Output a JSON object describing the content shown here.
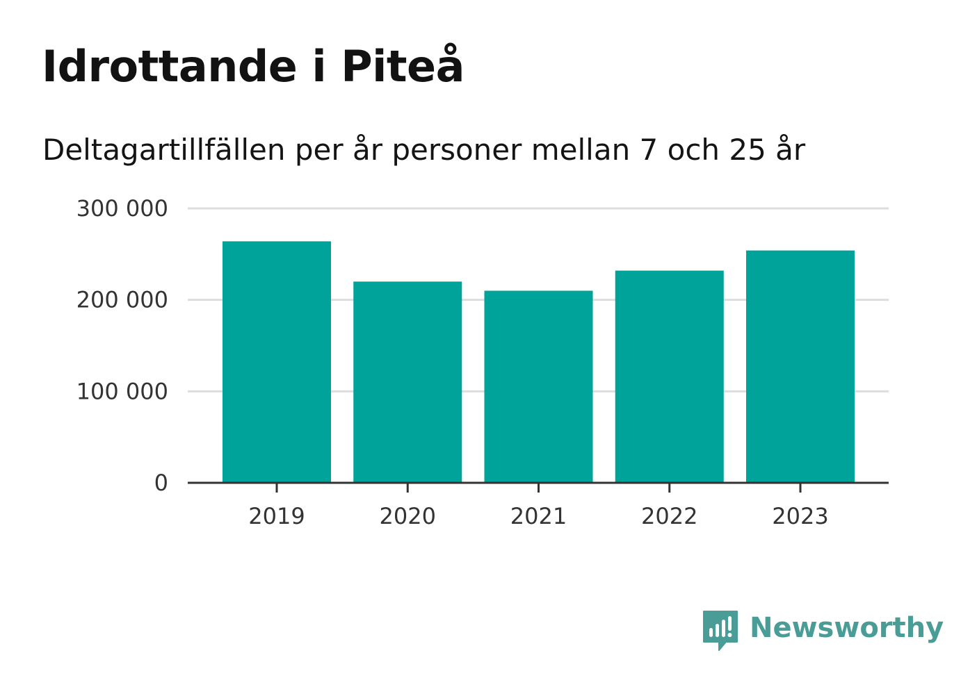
{
  "header": {
    "title": "Idrottande i Piteå",
    "subtitle": "Deltagartillfällen per år personer mellan 7 och 25 år"
  },
  "chart_data": {
    "type": "bar",
    "categories": [
      "2019",
      "2020",
      "2021",
      "2022",
      "2023"
    ],
    "values": [
      264000,
      220000,
      210000,
      232000,
      254000
    ],
    "ylim": [
      0,
      300000
    ],
    "yticks": [
      0,
      100000,
      200000,
      300000
    ],
    "ytick_labels": [
      "0",
      "100 000",
      "200 000",
      "300 000"
    ],
    "grid": true,
    "bar_color": "#00a39a",
    "gridline_color": "#dddddd",
    "axis_color": "#333333"
  },
  "brand": {
    "name": "Newsworthy",
    "icon": "newsworthy-logo-icon",
    "color": "#4a9c96"
  }
}
